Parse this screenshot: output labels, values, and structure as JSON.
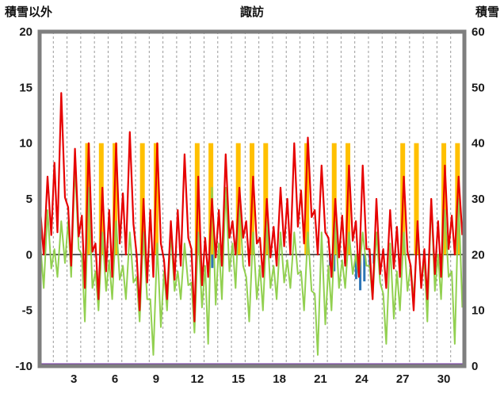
{
  "header": {
    "left_axis_title": "積雪以外",
    "title": "諏訪",
    "right_axis_title": "積雪"
  },
  "chart_data": {
    "type": "line",
    "title": "諏訪",
    "left_axis": {
      "label": "積雪以外",
      "range": [
        -10,
        20
      ],
      "ticks": [
        20,
        15,
        10,
        5,
        0,
        -5,
        -10
      ]
    },
    "right_axis": {
      "label": "積雪",
      "range": [
        0,
        60
      ],
      "ticks": [
        60,
        50,
        40,
        30,
        20,
        10,
        0
      ]
    },
    "x_axis": {
      "unit": "day",
      "range_days": [
        1,
        31
      ],
      "tick_days": [
        3,
        6,
        9,
        12,
        15,
        18,
        21,
        24,
        27,
        30
      ]
    },
    "grid": {
      "vertical_dashed_per_day": true,
      "zero_line": true
    },
    "colors": {
      "red_line": "#e60000",
      "green_line": "#92d050",
      "sunshine_bar": "#ffc000",
      "precip_bar": "#2e75b6",
      "snow_line": "#7030a0",
      "frame": "#7f7f7f",
      "grid": "#9a9a9a",
      "zero": "#333333"
    },
    "series": [
      {
        "name": "temperature-red",
        "type": "line",
        "axis": "left",
        "color": "#e60000",
        "daily_max": [
          7,
          14.5,
          9.5,
          10,
          6,
          10,
          11,
          5,
          10,
          3,
          9,
          7,
          5,
          9,
          6,
          7,
          5,
          6,
          10,
          10.5,
          8,
          5,
          8,
          8,
          5,
          4,
          7,
          3,
          5,
          8,
          7
        ],
        "daily_min": [
          0,
          2,
          -1,
          -3,
          -4,
          -2,
          0,
          -5,
          -2,
          -4,
          -1,
          -6,
          -2,
          -1,
          0,
          -1,
          -2,
          -1,
          0,
          1,
          0,
          -2,
          -1,
          -2,
          -4,
          -3,
          -2,
          -5,
          -4,
          -2,
          0
        ]
      },
      {
        "name": "secondary-green",
        "type": "line",
        "axis": "left",
        "color": "#92d050",
        "daily_max": [
          4,
          3,
          8,
          6,
          2,
          3,
          2,
          2,
          1,
          2,
          1,
          2,
          6,
          6,
          5,
          2,
          3,
          2,
          2,
          2,
          2,
          3,
          2,
          2,
          2,
          1,
          2,
          2,
          5,
          4,
          5
        ],
        "daily_min": [
          -3,
          -2,
          -2,
          -6,
          -5,
          -4,
          -4,
          -6,
          -9,
          -5,
          -4,
          -7,
          -8,
          -4,
          -3,
          -6,
          -5,
          -4,
          -3,
          -5,
          -9,
          -5,
          -3,
          -2,
          -4,
          -8,
          -5,
          -4,
          -6,
          -4,
          -8
        ]
      },
      {
        "name": "sunshine-orange-bars",
        "type": "bar",
        "axis": "left",
        "color": "#ffc000",
        "daily": [
          0,
          0,
          0,
          10,
          10,
          10,
          0,
          10,
          10,
          0,
          0,
          10,
          10,
          0,
          10,
          10,
          10,
          0,
          0,
          10,
          0,
          10,
          10,
          0,
          0,
          0,
          10,
          10,
          0,
          10,
          10
        ]
      },
      {
        "name": "precip-blue-bars",
        "type": "bar",
        "axis": "left",
        "color": "#2e75b6",
        "points": [
          {
            "day": 12.6,
            "value": -1.2
          },
          {
            "day": 21.2,
            "value": -1.0
          },
          {
            "day": 21.5,
            "value": -1.5
          },
          {
            "day": 22.3,
            "value": -0.8
          },
          {
            "day": 23.1,
            "value": -2.2
          },
          {
            "day": 23.4,
            "value": -3.2
          },
          {
            "day": 23.7,
            "value": -2.4
          },
          {
            "day": 24.1,
            "value": -1.2
          },
          {
            "day": 24.4,
            "value": -0.8
          }
        ]
      },
      {
        "name": "snow-depth-purple",
        "type": "line",
        "axis": "right",
        "color": "#7030a0",
        "constant": 0
      }
    ]
  }
}
